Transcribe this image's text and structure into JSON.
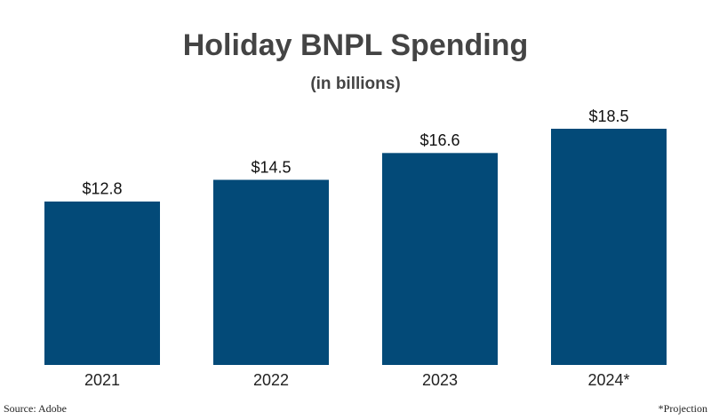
{
  "chart_data": {
    "type": "bar",
    "title": "Holiday BNPL Spending",
    "subtitle": "(in billions)",
    "categories": [
      "2021",
      "2022",
      "2023",
      "2024*"
    ],
    "values": [
      12.8,
      14.5,
      16.6,
      18.5
    ],
    "value_labels": [
      "$12.8",
      "$14.5",
      "$16.6",
      "$18.5"
    ],
    "color": "#034a78",
    "source": "Source: Adobe",
    "note": "*Projection"
  }
}
